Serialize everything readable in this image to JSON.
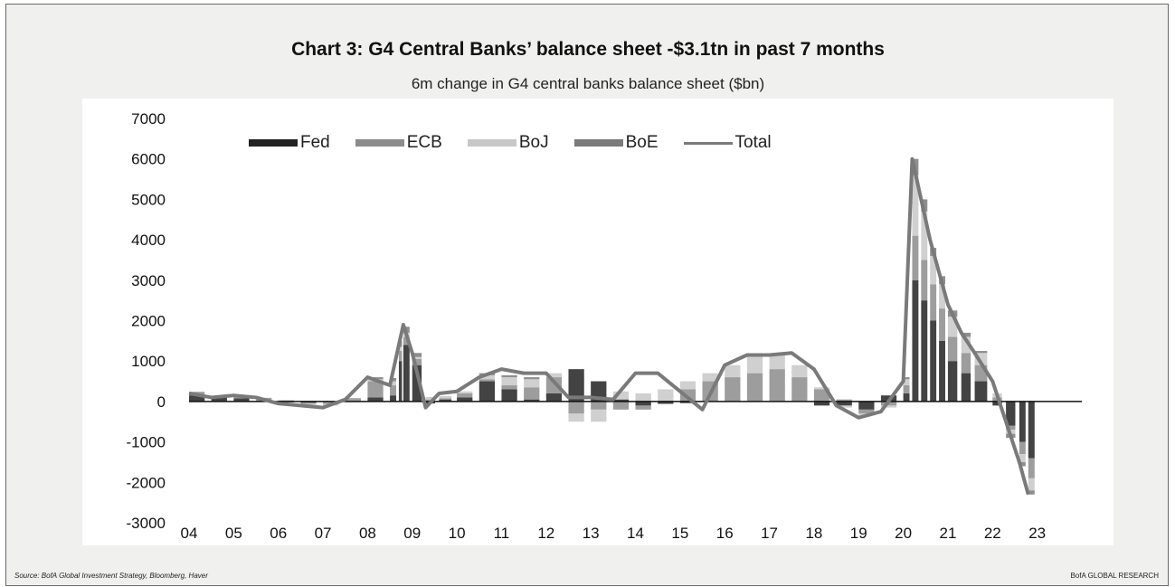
{
  "chart_data": {
    "type": "bar",
    "title": "Chart 3: G4 Central Banks’ balance sheet -$3.1tn in past 7 months",
    "subtitle": "6m change in G4 central banks balance sheet ($bn)",
    "xlabel": "",
    "ylabel": "",
    "ylim": [
      -3000,
      7000
    ],
    "xlim": [
      2004,
      2024
    ],
    "y_ticks": [
      "7000",
      "6000",
      "5000",
      "4000",
      "3000",
      "2000",
      "1000",
      "0",
      "-1000",
      "-2000",
      "-3000"
    ],
    "y_tick_values": [
      7000,
      6000,
      5000,
      4000,
      3000,
      2000,
      1000,
      0,
      -1000,
      -2000,
      -3000
    ],
    "x_ticks": [
      "04",
      "05",
      "06",
      "07",
      "08",
      "09",
      "10",
      "11",
      "12",
      "13",
      "14",
      "15",
      "16",
      "17",
      "18",
      "19",
      "20",
      "21",
      "22",
      "23"
    ],
    "x_tick_values": [
      2004,
      2005,
      2006,
      2007,
      2008,
      2009,
      2010,
      2011,
      2012,
      2013,
      2014,
      2015,
      2016,
      2017,
      2018,
      2019,
      2020,
      2021,
      2022,
      2023
    ],
    "legend_position": "top",
    "grid": false,
    "stacked": true,
    "x": [
      2004.0,
      2004.5,
      2005.0,
      2005.5,
      2006.0,
      2006.5,
      2007.0,
      2007.5,
      2008.0,
      2008.5,
      2008.7,
      2008.8,
      2009.0,
      2009.3,
      2009.6,
      2010.0,
      2010.5,
      2011.0,
      2011.5,
      2012.0,
      2012.5,
      2013.0,
      2013.5,
      2014.0,
      2014.5,
      2015.0,
      2015.5,
      2016.0,
      2016.5,
      2017.0,
      2017.5,
      2018.0,
      2018.5,
      2019.0,
      2019.5,
      2020.0,
      2020.2,
      2020.4,
      2020.6,
      2020.8,
      2021.0,
      2021.3,
      2021.6,
      2022.0,
      2022.3,
      2022.6,
      2022.8
    ],
    "series": [
      {
        "name": "Fed",
        "color": "#222222",
        "values": [
          150,
          100,
          80,
          20,
          -20,
          -30,
          -10,
          10,
          100,
          150,
          1000,
          1400,
          900,
          -50,
          50,
          100,
          500,
          300,
          50,
          200,
          800,
          500,
          50,
          -100,
          -50,
          -40,
          0,
          0,
          0,
          0,
          -10,
          -100,
          -100,
          -200,
          150,
          200,
          3000,
          2500,
          2000,
          1500,
          1000,
          700,
          500,
          -100,
          -600,
          -1000,
          -1400
        ]
      },
      {
        "name": "ECB",
        "color": "#8c8c8c",
        "values": [
          80,
          30,
          50,
          60,
          30,
          -30,
          -50,
          50,
          400,
          250,
          250,
          200,
          150,
          50,
          30,
          100,
          50,
          100,
          300,
          400,
          -300,
          -200,
          -200,
          -100,
          -20,
          300,
          500,
          600,
          700,
          800,
          600,
          300,
          50,
          -100,
          -100,
          200,
          1100,
          1000,
          900,
          800,
          600,
          500,
          400,
          100,
          -100,
          -300,
          -500
        ]
      },
      {
        "name": "BoJ",
        "color": "#c8c8c8",
        "values": [
          -20,
          -10,
          0,
          -10,
          0,
          -20,
          -40,
          -20,
          50,
          100,
          100,
          100,
          50,
          40,
          30,
          50,
          100,
          200,
          200,
          100,
          -200,
          -300,
          200,
          200,
          300,
          200,
          200,
          300,
          450,
          350,
          300,
          50,
          -50,
          -50,
          -50,
          150,
          1500,
          1200,
          700,
          600,
          500,
          400,
          300,
          100,
          -100,
          -200,
          -300
        ]
      },
      {
        "name": "BoE",
        "color": "#7a7a7a",
        "values": [
          10,
          5,
          10,
          10,
          0,
          0,
          0,
          20,
          50,
          80,
          150,
          150,
          100,
          10,
          10,
          0,
          50,
          50,
          50,
          0,
          0,
          0,
          0,
          0,
          0,
          0,
          0,
          0,
          0,
          0,
          0,
          0,
          0,
          0,
          0,
          50,
          400,
          300,
          200,
          200,
          150,
          100,
          50,
          0,
          -100,
          -100,
          -100
        ]
      }
    ],
    "total": {
      "name": "Total",
      "color": "#7a7a7a",
      "x": [
        2004.0,
        2004.5,
        2005.0,
        2005.5,
        2006.0,
        2006.5,
        2007.0,
        2007.5,
        2008.0,
        2008.5,
        2008.7,
        2008.8,
        2009.0,
        2009.3,
        2009.6,
        2010.0,
        2010.5,
        2011.0,
        2011.5,
        2012.0,
        2012.5,
        2013.0,
        2013.5,
        2014.0,
        2014.5,
        2015.0,
        2015.5,
        2016.0,
        2016.5,
        2017.0,
        2017.5,
        2018.0,
        2018.5,
        2019.0,
        2019.5,
        2020.0,
        2020.2,
        2020.4,
        2020.6,
        2020.8,
        2021.0,
        2021.3,
        2021.6,
        2022.0,
        2022.3,
        2022.6,
        2022.8
      ],
      "values": [
        200,
        100,
        150,
        100,
        -50,
        -100,
        -150,
        50,
        600,
        400,
        1400,
        1900,
        1200,
        -150,
        200,
        250,
        600,
        800,
        700,
        700,
        100,
        100,
        50,
        700,
        700,
        250,
        -200,
        900,
        1150,
        1150,
        1200,
        800,
        -100,
        -400,
        -250,
        500,
        6000,
        5000,
        4000,
        3200,
        2400,
        1700,
        1200,
        500,
        -500,
        -1500,
        -2300
      ]
    }
  },
  "footer": {
    "source": "Source: BofA Global Investment Strategy, Bloomberg, Haver",
    "brand": "BofA GLOBAL RESEARCH"
  }
}
